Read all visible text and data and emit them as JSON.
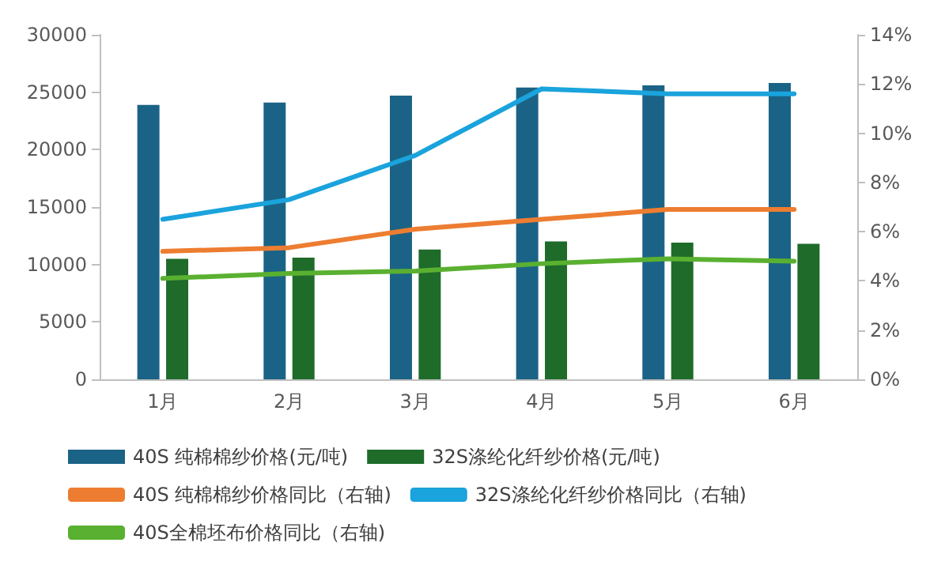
{
  "chart_data": {
    "type": "bar",
    "categories": [
      "1月",
      "2月",
      "3月",
      "4月",
      "5月",
      "6月"
    ],
    "series": [
      {
        "name": "40S 纯棉棉纱价格(元/吨)",
        "color": "#1b6386",
        "values": [
          23900,
          24100,
          24700,
          25400,
          25600,
          25800
        ]
      },
      {
        "name": "32S涤纶化纤纱价格(元/吨)",
        "color": "#1e6b2a",
        "values": [
          10500,
          10600,
          11300,
          12000,
          11900,
          11800
        ]
      },
      {
        "name": "40S 纯棉棉纱价格同比（右轴)",
        "type": "line",
        "axis": "y2",
        "color": "#ed7d31",
        "values": [
          5.2,
          5.35,
          6.1,
          6.5,
          6.9,
          6.9
        ]
      },
      {
        "name": "32S涤纶化纤纱价格同比（右轴)",
        "type": "line",
        "axis": "y2",
        "color": "#1aa3dc",
        "values": [
          6.5,
          7.3,
          9.1,
          11.8,
          11.6,
          11.6
        ]
      },
      {
        "name": "40S全棉坯布价格同比（右轴)",
        "type": "line",
        "axis": "y2",
        "color": "#5ab030",
        "values": [
          4.1,
          4.3,
          4.4,
          4.7,
          4.9,
          4.8
        ]
      }
    ],
    "ylim": [
      0,
      30000
    ],
    "yticks": [
      0,
      5000,
      10000,
      15000,
      20000,
      25000,
      30000
    ],
    "y2lim": [
      0,
      14
    ],
    "y2ticks": [
      {
        "value": 0,
        "label": "0%"
      },
      {
        "value": 2,
        "label": "2%"
      },
      {
        "value": 4,
        "label": "4%"
      },
      {
        "value": 6,
        "label": "6%"
      },
      {
        "value": 8,
        "label": "8%"
      },
      {
        "value": 10,
        "label": "10%"
      },
      {
        "value": 12,
        "label": "12%"
      },
      {
        "value": 14,
        "label": "14%"
      }
    ],
    "legend": "bottom",
    "marker": "none",
    "line_style": "solid",
    "grid": false
  }
}
